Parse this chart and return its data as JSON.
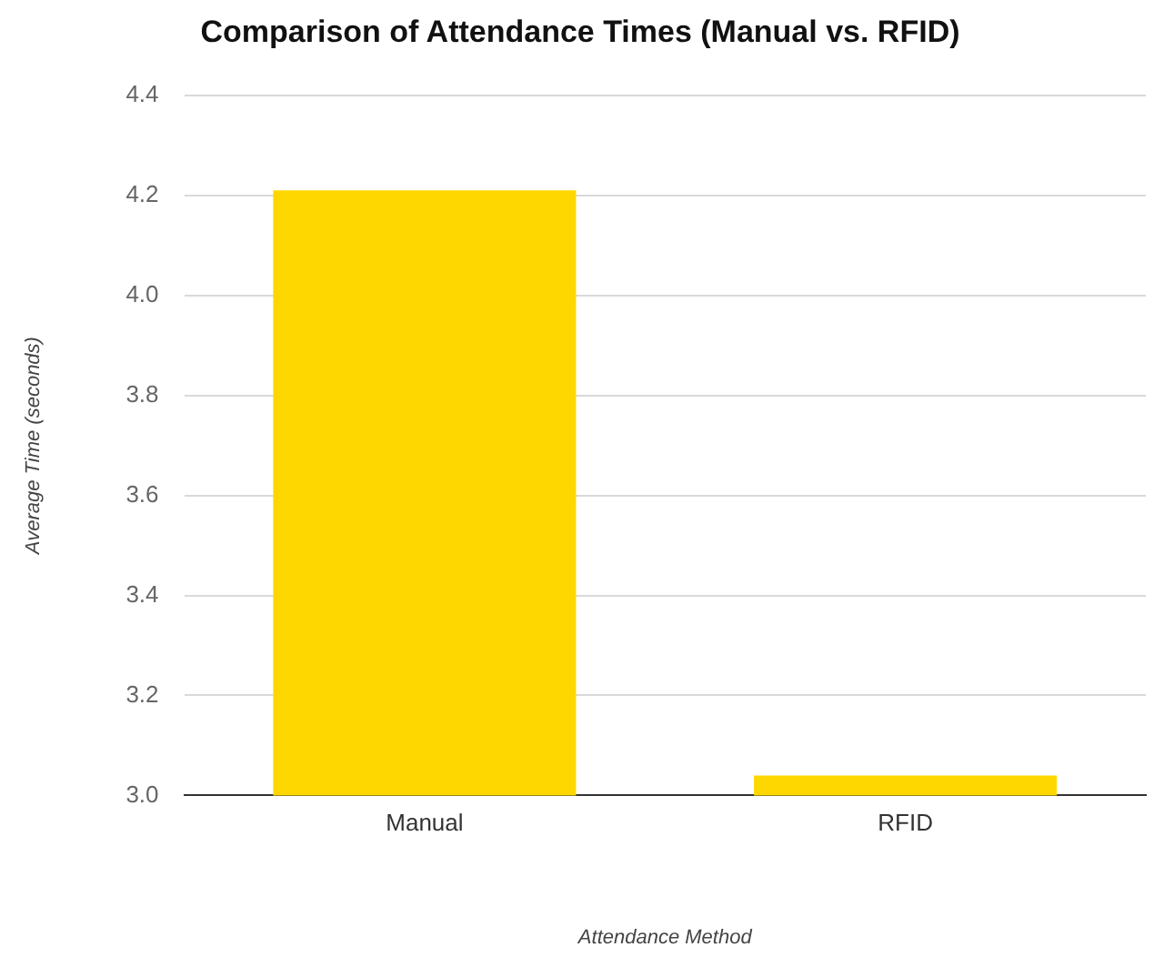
{
  "chart_data": {
    "type": "bar",
    "title": "Comparison of Attendance Times (Manual vs. RFID)",
    "xlabel": "Attendance Method",
    "ylabel": "Average Time (seconds)",
    "categories": [
      "Manual",
      "RFID"
    ],
    "values": [
      4.21,
      3.04
    ],
    "color": "#ffd700",
    "ylim": [
      3.0,
      4.4
    ],
    "yticks": [
      {
        "value": 3.0,
        "label": "3.0"
      },
      {
        "value": 3.2,
        "label": "3.2"
      },
      {
        "value": 3.4,
        "label": "3.4"
      },
      {
        "value": 3.6,
        "label": "3.6"
      },
      {
        "value": 3.8,
        "label": "3.8"
      },
      {
        "value": 4.0,
        "label": "4.0"
      },
      {
        "value": 4.2,
        "label": "4.2"
      },
      {
        "value": 4.4,
        "label": "4.4"
      }
    ],
    "grid": "y",
    "legend": false
  }
}
